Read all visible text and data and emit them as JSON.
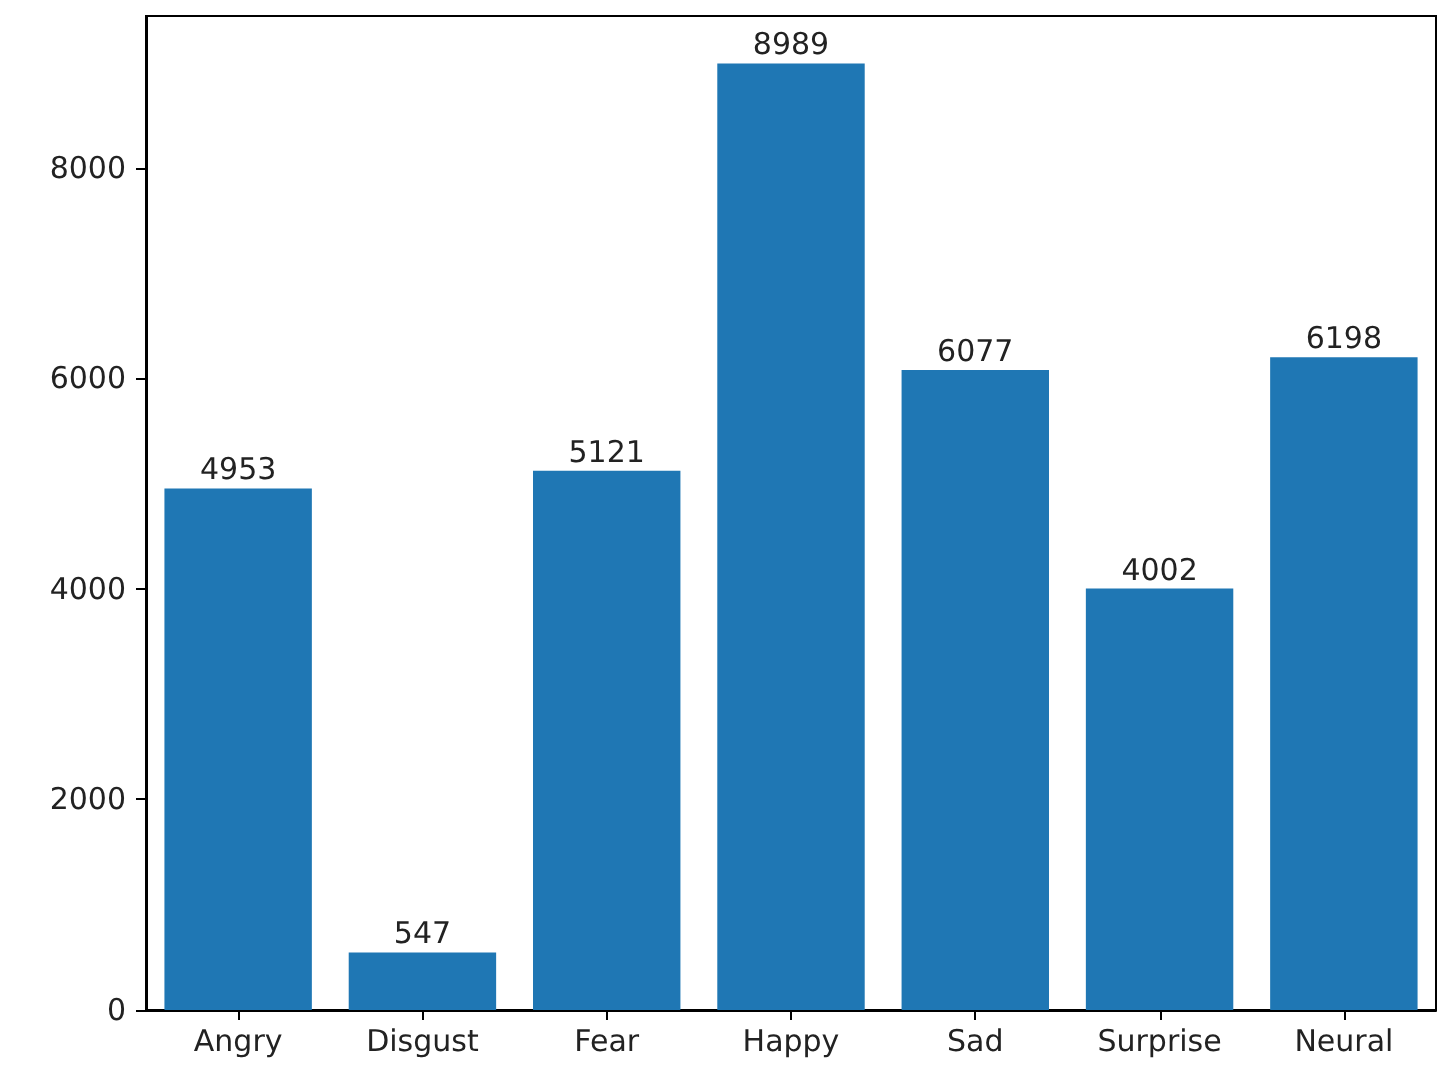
{
  "chart_data": {
    "type": "bar",
    "categories": [
      "Angry",
      "Disgust",
      "Fear",
      "Happy",
      "Sad",
      "Surprise",
      "Neural"
    ],
    "values": [
      4953,
      547,
      5121,
      8989,
      6077,
      4002,
      6198
    ],
    "color": "#1f77b4",
    "ylim": [
      0,
      9440
    ],
    "yticks": [
      0,
      2000,
      4000,
      6000,
      8000
    ],
    "data_labels": true,
    "grid": false
  }
}
